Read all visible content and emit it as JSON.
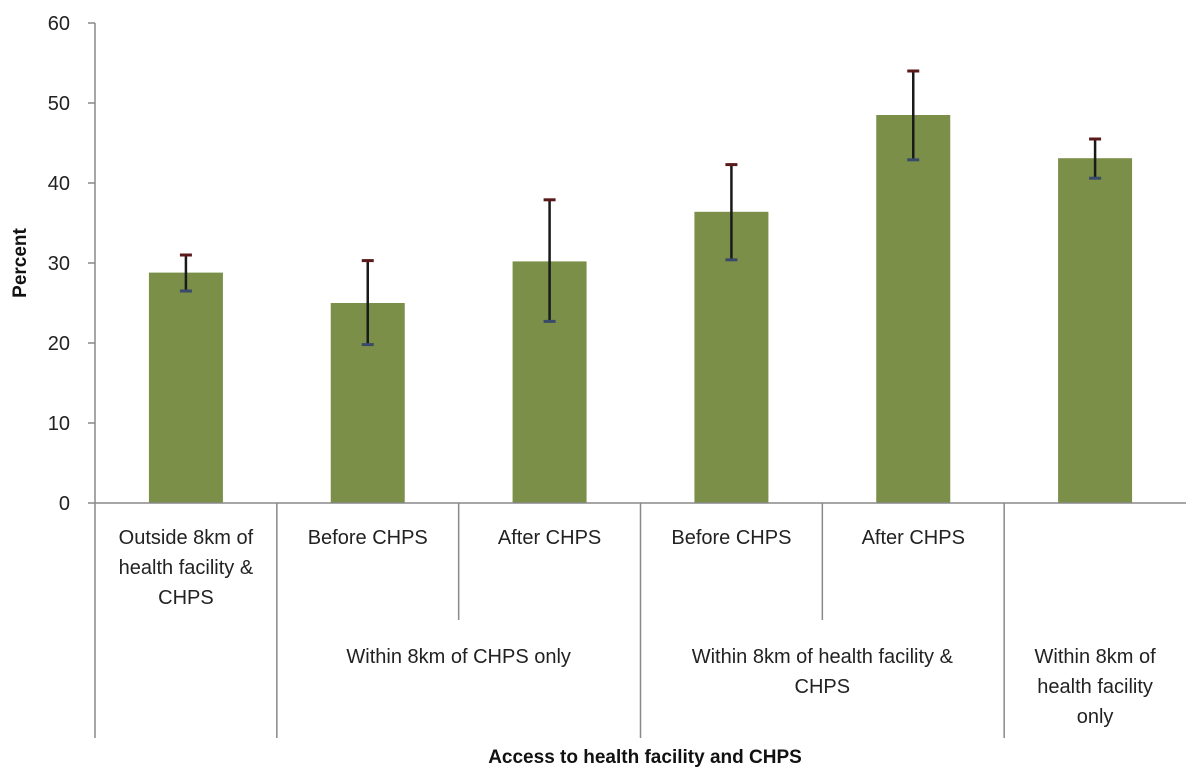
{
  "chart_data": {
    "type": "bar",
    "title": "",
    "xlabel": "Access to health facility and CHPS",
    "ylabel": "Percent",
    "ylim": [
      0,
      60
    ],
    "yticks": [
      0,
      10,
      20,
      30,
      40,
      50,
      60
    ],
    "grid": false,
    "legend": "none",
    "bar_color": "#7b8f48",
    "error_bar_color": "#1a1a1a",
    "categories": [
      "Outside 8km of health facility & CHPS",
      "Before CHPS",
      "After CHPS",
      "Before CHPS",
      "After CHPS",
      "Within 8km of health facility only"
    ],
    "category_label_lines": [
      [
        "Outside 8km of",
        "health facility &",
        "CHPS"
      ],
      [
        "Before CHPS"
      ],
      [
        "After CHPS"
      ],
      [
        "Before CHPS"
      ],
      [
        "After CHPS"
      ],
      []
    ],
    "groups": [
      {
        "label_lines": [],
        "span": [
          0,
          0
        ]
      },
      {
        "label_lines": [
          "Within 8km of CHPS only"
        ],
        "span": [
          1,
          2
        ]
      },
      {
        "label_lines": [
          "Within 8km of health facility &",
          "CHPS"
        ],
        "span": [
          3,
          4
        ]
      },
      {
        "label_lines": [
          "Within 8km of",
          "health facility",
          "only"
        ],
        "span": [
          5,
          5
        ]
      }
    ],
    "series": [
      {
        "values": [
          28.8,
          25.0,
          30.2,
          36.4,
          48.5,
          43.1
        ],
        "error_low": [
          26.5,
          19.8,
          22.7,
          30.4,
          42.9,
          40.6
        ],
        "error_high": [
          31.0,
          30.3,
          37.9,
          42.3,
          54.0,
          45.5
        ]
      }
    ]
  }
}
